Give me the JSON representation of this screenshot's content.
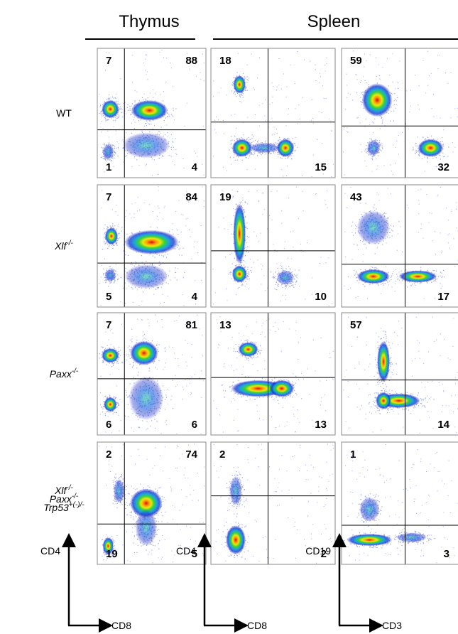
{
  "headers": [
    "Thymus",
    "Spleen"
  ],
  "rows": [
    {
      "label": [
        {
          "base": "WT"
        }
      ],
      "panels": [
        {
          "tl": 7,
          "tr": 88,
          "bl": 1,
          "br": 4
        },
        {
          "tl": 18,
          "br": 15
        },
        {
          "tl": 59,
          "br": 32
        }
      ]
    },
    {
      "label": [
        {
          "base": "Xlf",
          "sup": "-/-"
        }
      ],
      "panels": [
        {
          "tl": 7,
          "tr": 84,
          "bl": 5,
          "br": 4
        },
        {
          "tl": 19,
          "br": 10
        },
        {
          "tl": 43,
          "br": 17
        }
      ]
    },
    {
      "label": [
        {
          "base": "Paxx",
          "sup": "-/-"
        }
      ],
      "panels": [
        {
          "tl": 7,
          "tr": 81,
          "bl": 6,
          "br": 6
        },
        {
          "tl": 13,
          "br": 13
        },
        {
          "tl": 57,
          "br": 14
        }
      ]
    },
    {
      "label": [
        {
          "base": "Xlf",
          "sup": "-/-"
        },
        {
          "base": "Paxx",
          "sup": "-/-"
        },
        {
          "base": "Trp53",
          "sup": "+(-)/-"
        }
      ],
      "panels": [
        {
          "tl": 2,
          "tr": 74,
          "bl": 19,
          "br": 5
        },
        {
          "tl": 2,
          "br": 2
        },
        {
          "tl": 1,
          "br": 3
        }
      ]
    }
  ],
  "axes": [
    {
      "y": "CD4",
      "x": "CD8"
    },
    {
      "y": "CD4",
      "x": "CD8"
    },
    {
      "y": "CD19",
      "x": "CD3"
    }
  ]
}
